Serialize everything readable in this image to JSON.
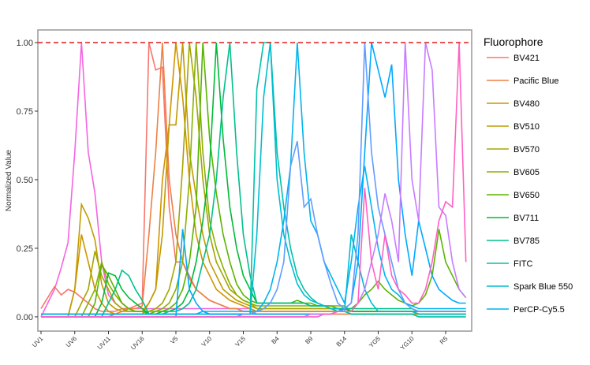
{
  "chart_data": {
    "type": "line",
    "y_label": "Normalized Value",
    "legend_title": "Fluorophore",
    "categories": [
      "UV1",
      null,
      null,
      null,
      null,
      "UV6",
      null,
      null,
      null,
      null,
      "UV11",
      null,
      null,
      null,
      null,
      "UV16",
      null,
      null,
      null,
      null,
      "V5",
      null,
      null,
      null,
      null,
      "V10",
      null,
      null,
      null,
      null,
      "V15",
      null,
      null,
      null,
      null,
      "B4",
      null,
      null,
      null,
      null,
      "B9",
      null,
      null,
      null,
      null,
      "B14",
      null,
      null,
      null,
      null,
      "YG5",
      null,
      null,
      null,
      null,
      "YG10",
      null,
      null,
      null,
      null,
      "R5",
      null,
      null,
      null
    ],
    "ylim": [
      -0.052,
      1.046
    ],
    "yticks": [
      {
        "value": 0,
        "label": "0.00"
      },
      0.25,
      {
        "value": 0.5,
        "label": "0.50"
      },
      0.75,
      {
        "value": 1,
        "label": "1.00"
      }
    ],
    "reference_line": {
      "value": 1,
      "color": "#e41a1c"
    },
    "series": [
      {
        "color": "#f564e3",
        "values": [
          0,
          0.05,
          0.1,
          0.18,
          0.27,
          0.6,
          1,
          0.6,
          0.45,
          0.2,
          0.08,
          0.05,
          0.03,
          0.03,
          0.03,
          0.03,
          0.03,
          0.03,
          0.03,
          0.03,
          0.03,
          0.03,
          0.03,
          0.03,
          0.03,
          0.03,
          0.03,
          0.03,
          0.03,
          0.03,
          0.03,
          0.03,
          0.02,
          0.02,
          0.02,
          0.02,
          0.02,
          0.02,
          0.02,
          0.02,
          0.02,
          0.02,
          0.02,
          0.02,
          0.02,
          0.02,
          0.02,
          0.02,
          0.02,
          0.02,
          0.02,
          0.02,
          0.02,
          0.02,
          0.02,
          0.02,
          0.02,
          0.02,
          0.02,
          0.02,
          0.02,
          0.02,
          0.02,
          0.02
        ]
      },
      {
        "name": "BV421",
        "color": "#f8766d",
        "values": [
          0.03,
          0.07,
          0.11,
          0.08,
          0.1,
          0.09,
          0.07,
          0.05,
          0.03,
          0.02,
          0.02,
          0.02,
          0.03,
          0.03,
          0.04,
          0.05,
          1,
          0.9,
          0.91,
          0.4,
          0.2,
          0.2,
          0.15,
          0.1,
          0.08,
          0.06,
          0.05,
          0.04,
          0.03,
          0.03,
          0.02,
          0.02,
          0.02,
          0.02,
          0.02,
          0.02,
          0.02,
          0.02,
          0.02,
          0.02,
          0.02,
          0.02,
          0.02,
          0.02,
          0.02,
          0.02,
          0.01,
          0.01,
          0.01,
          0.01,
          0.01,
          0.01,
          0.01,
          0.01,
          0.01,
          0.01,
          0.01,
          0.01,
          0.01,
          0.01,
          0.01,
          0.01,
          0.01,
          0.01
        ]
      },
      {
        "name": "Pacific Blue",
        "color": "#ee8044",
        "values": [
          0,
          0,
          0,
          0,
          0,
          0,
          0,
          0,
          0,
          0,
          0,
          0.01,
          0.02,
          0.03,
          0.03,
          0.04,
          0.3,
          0.6,
          1,
          0.5,
          0.3,
          0.2,
          0.14,
          0.1,
          0.08,
          0.06,
          0.05,
          0.04,
          0.03,
          0.03,
          0.02,
          0.02,
          0.01,
          0.01,
          0.01,
          0.01,
          0.01,
          0.01,
          0.01,
          0.01,
          0.01,
          0.01,
          0.01,
          0.01,
          0.01,
          0.01,
          0.01,
          0.01,
          0.01,
          0.01,
          0.01,
          0.01,
          0.01,
          0.01,
          0.01,
          0.01,
          0.01,
          0.01,
          0.01,
          0.01,
          0.01,
          0.01,
          0.01,
          0.01
        ]
      },
      {
        "name": "BV480",
        "color": "#cf9400",
        "values": [
          0,
          0,
          0,
          0,
          0,
          0.1,
          0.3,
          0.2,
          0.1,
          0.05,
          0.02,
          0.01,
          0.01,
          0.01,
          0.01,
          0.01,
          0.05,
          0.1,
          0.5,
          0.7,
          1,
          0.8,
          0.5,
          0.3,
          0.2,
          0.15,
          0.1,
          0.08,
          0.06,
          0.05,
          0.04,
          0.03,
          0.02,
          0.02,
          0.02,
          0.02,
          0.02,
          0.02,
          0.02,
          0.02,
          0.02,
          0.02,
          0.02,
          0.02,
          0.02,
          0.02,
          0.01,
          0.01,
          0.01,
          0.01,
          0.01,
          0.01,
          0.01,
          0.01,
          0.01,
          0.01,
          0.01,
          0.01,
          0.01,
          0.01,
          0.01,
          0.01,
          0.01,
          0.01
        ]
      },
      {
        "name": "BV510",
        "color": "#c09b00",
        "values": [
          0,
          0,
          0,
          0,
          0,
          0.1,
          0.41,
          0.36,
          0.28,
          0.12,
          0.05,
          0.03,
          0.02,
          0.02,
          0.02,
          0.02,
          0.05,
          0.1,
          0.3,
          0.7,
          0.7,
          1,
          0.6,
          0.44,
          0.3,
          0.2,
          0.15,
          0.1,
          0.08,
          0.06,
          0.05,
          0.04,
          0.03,
          0.03,
          0.03,
          0.03,
          0.03,
          0.03,
          0.03,
          0.03,
          0.03,
          0.03,
          0.03,
          0.03,
          0.03,
          0.03,
          0.02,
          0.02,
          0.02,
          0.02,
          0.02,
          0.02,
          0.02,
          0.02,
          0.02,
          0.02,
          0.01,
          0.01,
          0.01,
          0.01,
          0.01,
          0.01,
          0.01,
          0.01
        ]
      },
      {
        "name": "BV570",
        "color": "#a3a500",
        "values": [
          0,
          0,
          0,
          0,
          0,
          0,
          0.05,
          0.1,
          0.24,
          0.15,
          0.1,
          0.05,
          0.03,
          0.02,
          0.02,
          0.02,
          0.02,
          0.03,
          0.05,
          0.1,
          0.2,
          0.55,
          1,
          0.8,
          0.5,
          0.3,
          0.2,
          0.15,
          0.1,
          0.08,
          0.06,
          0.05,
          0.03,
          0.03,
          0.03,
          0.03,
          0.03,
          0.03,
          0.03,
          0.03,
          0.03,
          0.03,
          0.03,
          0.03,
          0.03,
          0.03,
          0.02,
          0.02,
          0.02,
          0.02,
          0.02,
          0.02,
          0.02,
          0.02,
          0.02,
          0.02,
          0.01,
          0.01,
          0.01,
          0.01,
          0.01,
          0.01,
          0.01,
          0.01
        ]
      },
      {
        "name": "BV605",
        "color": "#8ab000",
        "values": [
          0,
          0,
          0,
          0,
          0,
          0,
          0,
          0.05,
          0.1,
          0.2,
          0.12,
          0.08,
          0.05,
          0.03,
          0.02,
          0.02,
          0.02,
          0.02,
          0.03,
          0.05,
          0.1,
          0.2,
          0.5,
          1,
          0.6,
          0.35,
          0.25,
          0.18,
          0.12,
          0.08,
          0.06,
          0.05,
          0.04,
          0.04,
          0.04,
          0.04,
          0.04,
          0.04,
          0.04,
          0.04,
          0.04,
          0.04,
          0.04,
          0.04,
          0.04,
          0.04,
          0.02,
          0.02,
          0.02,
          0.02,
          0.02,
          0.02,
          0.02,
          0.02,
          0.02,
          0.02,
          0.01,
          0.01,
          0.01,
          0.01,
          0.01,
          0.01,
          0.01,
          0.01
        ]
      },
      {
        "name": "BV650",
        "color": "#5bb300",
        "values": [
          0,
          0,
          0,
          0,
          0,
          0,
          0,
          0,
          0.05,
          0.19,
          0.15,
          0.1,
          0.05,
          0.03,
          0.02,
          0.02,
          0.01,
          0.02,
          0.02,
          0.03,
          0.05,
          0.1,
          0.2,
          0.4,
          1,
          0.65,
          0.45,
          0.3,
          0.2,
          0.12,
          0.08,
          0.06,
          0.05,
          0.05,
          0.05,
          0.05,
          0.05,
          0.05,
          0.06,
          0.05,
          0.05,
          0.04,
          0.04,
          0.04,
          0.03,
          0.03,
          0.03,
          0.05,
          0.08,
          0.1,
          0.13,
          0.1,
          0.08,
          0.06,
          0.05,
          0.04,
          0.05,
          0.08,
          0.15,
          0.32,
          0.2,
          0.15,
          0.1,
          0.07
        ]
      },
      {
        "name": "BV711",
        "color": "#00ba38",
        "values": [
          0,
          0,
          0,
          0,
          0,
          0,
          0,
          0,
          0,
          0.05,
          0.16,
          0.15,
          0.1,
          0.07,
          0.05,
          0.03,
          0.01,
          0.01,
          0.02,
          0.02,
          0.03,
          0.05,
          0.1,
          0.2,
          0.35,
          0.55,
          1,
          0.65,
          0.4,
          0.25,
          0.15,
          0.1,
          0.05,
          0.05,
          0.05,
          0.05,
          0.05,
          0.05,
          0.05,
          0.05,
          0.04,
          0.04,
          0.04,
          0.03,
          0.03,
          0.03,
          0.02,
          0.02,
          0.02,
          0.02,
          0.02,
          0.02,
          0.02,
          0.02,
          0.02,
          0.02,
          0.02,
          0.02,
          0.02,
          0.02,
          0.02,
          0.02,
          0.02,
          0.02
        ]
      },
      {
        "name": "BV785",
        "color": "#00c08b",
        "values": [
          0,
          0,
          0,
          0,
          0,
          0,
          0,
          0,
          0,
          0,
          0.05,
          0.1,
          0.17,
          0.15,
          0.1,
          0.06,
          0.01,
          0.01,
          0.01,
          0.02,
          0.02,
          0.03,
          0.05,
          0.1,
          0.2,
          0.3,
          0.5,
          0.8,
          1,
          0.6,
          0.3,
          0.15,
          0.05,
          0.05,
          0.05,
          0.05,
          0.05,
          0.05,
          0.05,
          0.05,
          0.04,
          0.04,
          0.04,
          0.03,
          0.03,
          0.03,
          0.03,
          0.03,
          0.03,
          0.03,
          0.03,
          0.03,
          0.03,
          0.03,
          0.03,
          0.03,
          0.02,
          0.02,
          0.02,
          0.02,
          0.02,
          0.02,
          0.02,
          0.02
        ]
      },
      {
        "name": "FITC",
        "color": "#00c1a7",
        "values": [
          0.01,
          0.01,
          0.01,
          0.01,
          0.01,
          0.01,
          0.01,
          0.01,
          0.01,
          0.01,
          0.01,
          0.01,
          0.01,
          0.01,
          0.01,
          0.01,
          0.01,
          0.01,
          0.01,
          0.01,
          0.01,
          0.01,
          0.01,
          0.01,
          0.01,
          0.01,
          0.01,
          0.01,
          0.01,
          0.01,
          0.01,
          0.01,
          0.83,
          1,
          1,
          0.6,
          0.4,
          0.25,
          0.15,
          0.1,
          0.07,
          0.05,
          0.04,
          0.03,
          0.02,
          0.02,
          0.01,
          0.01,
          0.01,
          0.01,
          0.01,
          0.01,
          0.01,
          0.01,
          0.01,
          0.01,
          0,
          0,
          0,
          0,
          0,
          0,
          0,
          0
        ]
      },
      {
        "name": "Spark Blue 550",
        "color": "#00bdd0",
        "values": [
          0.01,
          0.01,
          0.01,
          0.01,
          0.01,
          0.01,
          0.01,
          0.01,
          0.01,
          0.01,
          0.01,
          0.01,
          0.01,
          0.01,
          0.01,
          0.01,
          0.01,
          0.01,
          0.01,
          0.01,
          0.01,
          0.01,
          0.01,
          0.01,
          0.01,
          0.01,
          0.01,
          0.01,
          0.01,
          0.01,
          0.01,
          0.01,
          0.3,
          0.8,
          1,
          0.5,
          0.3,
          0.2,
          0.12,
          0.08,
          0.06,
          0.05,
          0.04,
          0.03,
          0.03,
          0.02,
          0.3,
          0.2,
          0.1,
          0.05,
          0.02,
          0.02,
          0.02,
          0.02,
          0.02,
          0.02,
          0.01,
          0.01,
          0.01,
          0.01,
          0.01,
          0.01,
          0.01,
          0.01
        ]
      },
      {
        "name": "PerCP-Cy5.5",
        "color": "#00b4ef",
        "values": [
          0.01,
          0.01,
          0.01,
          0.01,
          0.01,
          0.01,
          0.01,
          0.01,
          0.01,
          0.01,
          0.01,
          0.01,
          0.01,
          0.01,
          0.01,
          0.01,
          0.01,
          0.01,
          0.01,
          0.01,
          0.01,
          0.01,
          0.01,
          0.01,
          0.02,
          0.02,
          0.02,
          0.02,
          0.02,
          0.02,
          0.02,
          0.02,
          0.02,
          0.05,
          0.1,
          0.2,
          0.35,
          0.55,
          1,
          0.6,
          0.35,
          0.3,
          0.2,
          0.15,
          0.1,
          0.05,
          0.2,
          0.4,
          0.55,
          0.4,
          0.25,
          0.15,
          0.1,
          0.08,
          0.05,
          0.04,
          0.03,
          0.03,
          0.03,
          0.03,
          0.03,
          0.03,
          0.03,
          0.03
        ]
      },
      {
        "color": "#00a9ff",
        "values": [
          0,
          0,
          0,
          0,
          0,
          0,
          0,
          0,
          0,
          0,
          0,
          0,
          0,
          0,
          0,
          0,
          0,
          0,
          0,
          0,
          0,
          0.32,
          0.1,
          0.05,
          0.02,
          0.01,
          0.01,
          0.01,
          0.01,
          0.01,
          0.01,
          0.01,
          0.01,
          0.01,
          0.01,
          0.01,
          0.01,
          0.01,
          0.01,
          0.01,
          0.01,
          0.01,
          0.01,
          0.01,
          0.02,
          0.03,
          0.05,
          0.2,
          0.6,
          1,
          0.9,
          0.8,
          0.92,
          0.5,
          0.3,
          0.15,
          0.35,
          0.25,
          0.15,
          0.1,
          0.08,
          0.06,
          0.05,
          0.05
        ]
      },
      {
        "color": "#619cff",
        "values": [
          0,
          0,
          0,
          0,
          0,
          0,
          0,
          0,
          0,
          0,
          0,
          0,
          0,
          0,
          0,
          0,
          0,
          0,
          0,
          0,
          0,
          0,
          0,
          0,
          0,
          0,
          0,
          0,
          0,
          0,
          0.01,
          0.01,
          0.02,
          0.03,
          0.05,
          0.1,
          0.2,
          0.55,
          0.64,
          0.4,
          0.43,
          0.3,
          0.2,
          0.12,
          0.05,
          0.03,
          0.05,
          0.3,
          1,
          0.6,
          0.4,
          0.3,
          0.2,
          0.1,
          0.05,
          0.03,
          0.02,
          0.02,
          0.02,
          0.02,
          0.02,
          0.02,
          0.02,
          0.02
        ]
      },
      {
        "color": "#c77cff",
        "values": [
          0,
          0,
          0,
          0,
          0,
          0,
          0,
          0,
          0,
          0,
          0,
          0,
          0,
          0,
          0,
          0,
          0,
          0,
          0,
          0,
          0,
          0,
          0,
          0,
          0,
          0,
          0,
          0,
          0,
          0,
          0,
          0,
          0,
          0,
          0,
          0,
          0,
          0,
          0,
          0,
          0.01,
          0.01,
          0.01,
          0.01,
          0.02,
          0.02,
          0.02,
          0.05,
          0.1,
          0.2,
          0.3,
          0.45,
          0.35,
          0.2,
          1,
          0.5,
          0.35,
          1,
          0.9,
          0.4,
          0.37,
          0.2,
          0.1,
          0.07
        ]
      },
      {
        "color": "#ff61c3",
        "values": [
          0,
          0,
          0,
          0,
          0,
          0,
          0,
          0,
          0,
          0,
          0,
          0,
          0,
          0,
          0,
          0,
          0,
          0,
          0,
          0,
          0,
          0,
          0,
          0,
          0,
          0,
          0,
          0,
          0,
          0,
          0,
          0,
          0,
          0,
          0,
          0,
          0,
          0,
          0,
          0,
          0,
          0,
          0.01,
          0.01,
          0.02,
          0.02,
          0.02,
          0.05,
          0.47,
          0.2,
          0.1,
          0.3,
          0.15,
          0.1,
          0.08,
          0.05,
          0.05,
          0.1,
          0.2,
          0.35,
          0.42,
          0.4,
          1,
          0.2
        ]
      }
    ]
  }
}
